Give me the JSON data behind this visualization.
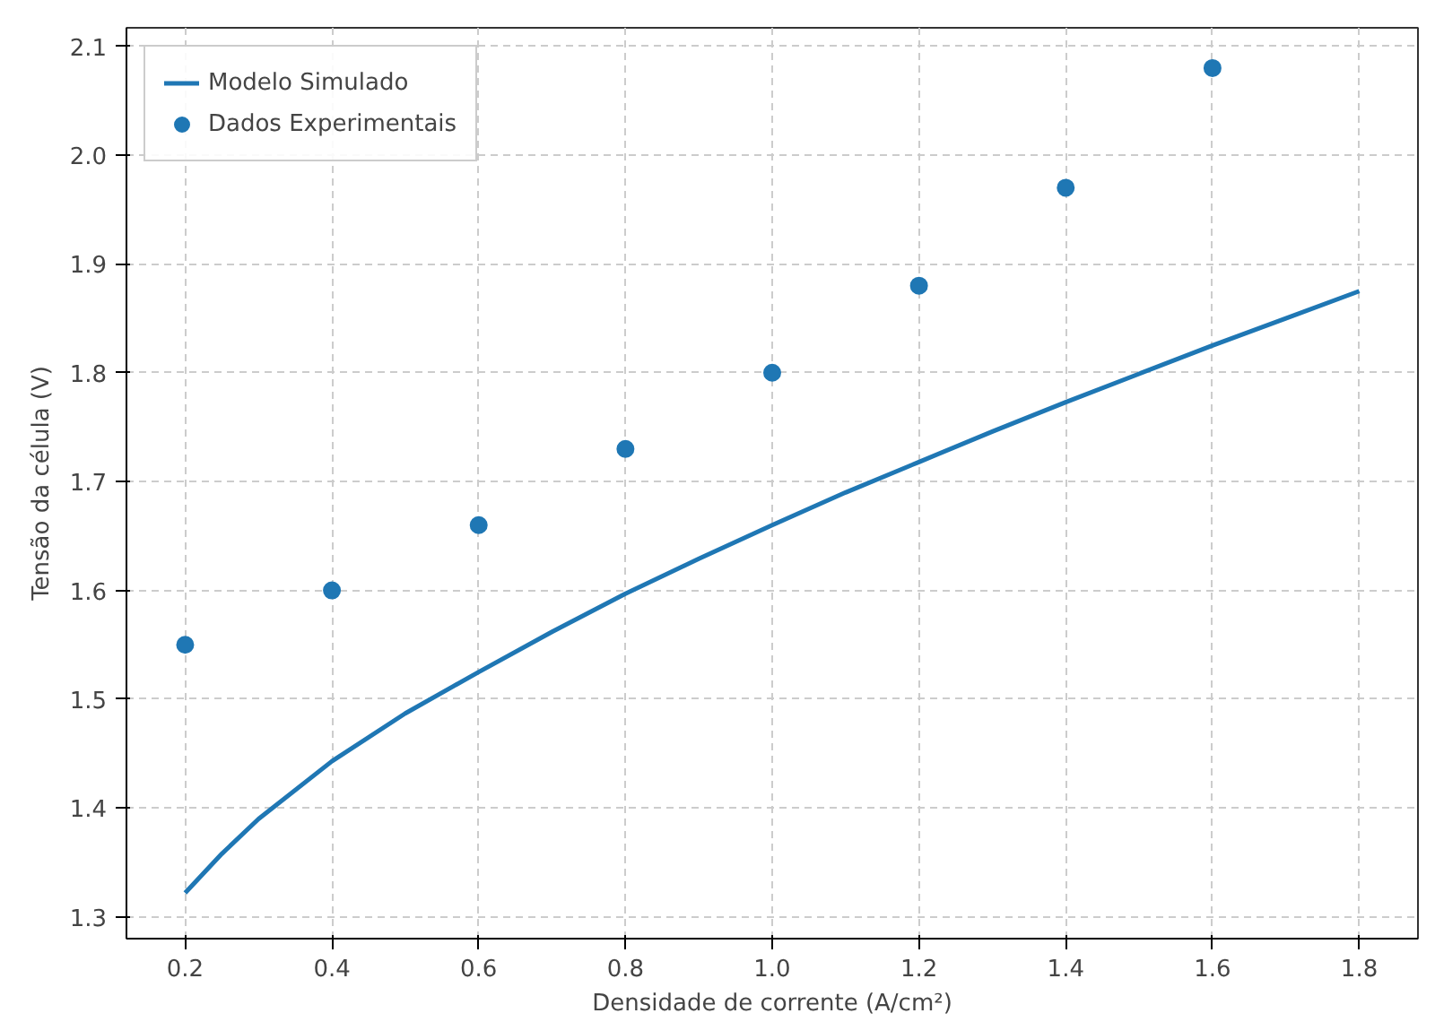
{
  "chart_data": {
    "type": "line",
    "xlabel": "Densidade de corrente (A/cm²)",
    "ylabel": "Tensão da célula (V)",
    "xlim": [
      0.12,
      1.88
    ],
    "ylim": [
      1.28,
      2.117
    ],
    "xticks": [
      0.2,
      0.4,
      0.6,
      0.8,
      {
        "value": 1,
        "label": "1.0"
      },
      1.2,
      1.4,
      1.6,
      1.8
    ],
    "yticks": [
      1.3,
      1.4,
      1.5,
      1.6,
      1.7,
      1.8,
      1.9,
      {
        "value": 2,
        "label": "2.0"
      },
      2.1
    ],
    "grid": true,
    "legend": "top left",
    "series": [
      {
        "name": "Modelo Simulado",
        "color": "#1f77b4",
        "marker": "none",
        "line_style": "solid",
        "x": [
          0.2,
          0.25,
          0.3,
          0.4,
          0.5,
          0.6,
          0.7,
          0.8,
          0.9,
          1.0,
          1.1,
          1.2,
          1.3,
          1.4,
          1.5,
          1.6,
          1.7,
          1.8
        ],
        "values": [
          1.322,
          1.358,
          1.39,
          1.443,
          1.487,
          1.525,
          1.562,
          1.597,
          1.629,
          1.66,
          1.69,
          1.718,
          1.746,
          1.773,
          1.799,
          1.825,
          1.85,
          1.875
        ]
      },
      {
        "name": "Dados Experimentais",
        "type": "scatter",
        "color": "#1f77b4",
        "marker": "circle",
        "x": [
          0.2,
          0.4,
          0.6,
          0.8,
          1.0,
          1.2,
          1.4,
          1.6
        ],
        "values": [
          1.55,
          1.6,
          1.66,
          1.73,
          1.8,
          1.88,
          1.97,
          2.08
        ]
      }
    ]
  }
}
